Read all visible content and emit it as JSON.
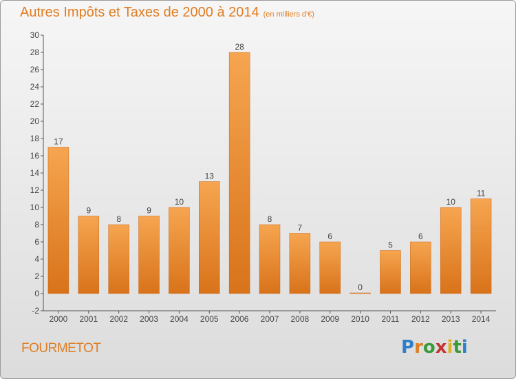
{
  "header": {
    "title": "Autres Impôts et Taxes de 2000 à 2014",
    "unit": "(en milliers d'€)"
  },
  "footer": {
    "commune": "FOURMETOT",
    "logo_letters": [
      "P",
      "r",
      "o",
      "x",
      "i",
      "t",
      "i"
    ],
    "logo_colors": [
      "#2e7fc9",
      "#e07d22",
      "#3a9a3a",
      "#c23535",
      "#e0b020",
      "#3a9a3a",
      "#2e7fc9"
    ]
  },
  "chart_data": {
    "type": "bar",
    "categories": [
      "2000",
      "2001",
      "2002",
      "2003",
      "2004",
      "2005",
      "2006",
      "2007",
      "2008",
      "2009",
      "2010",
      "2011",
      "2012",
      "2013",
      "2014"
    ],
    "values": [
      17,
      9,
      8,
      9,
      10,
      13,
      28,
      8,
      7,
      6,
      0,
      5,
      6,
      10,
      11
    ],
    "title": "Autres Impôts et Taxes de 2000 à 2014",
    "ylim": [
      -2,
      30
    ],
    "yticks": [
      -2,
      0,
      2,
      4,
      6,
      8,
      10,
      12,
      14,
      16,
      18,
      20,
      22,
      24,
      26,
      28,
      30
    ],
    "grid": false,
    "bar_color_top": "#f6a550",
    "bar_color_bottom": "#d8731a"
  }
}
